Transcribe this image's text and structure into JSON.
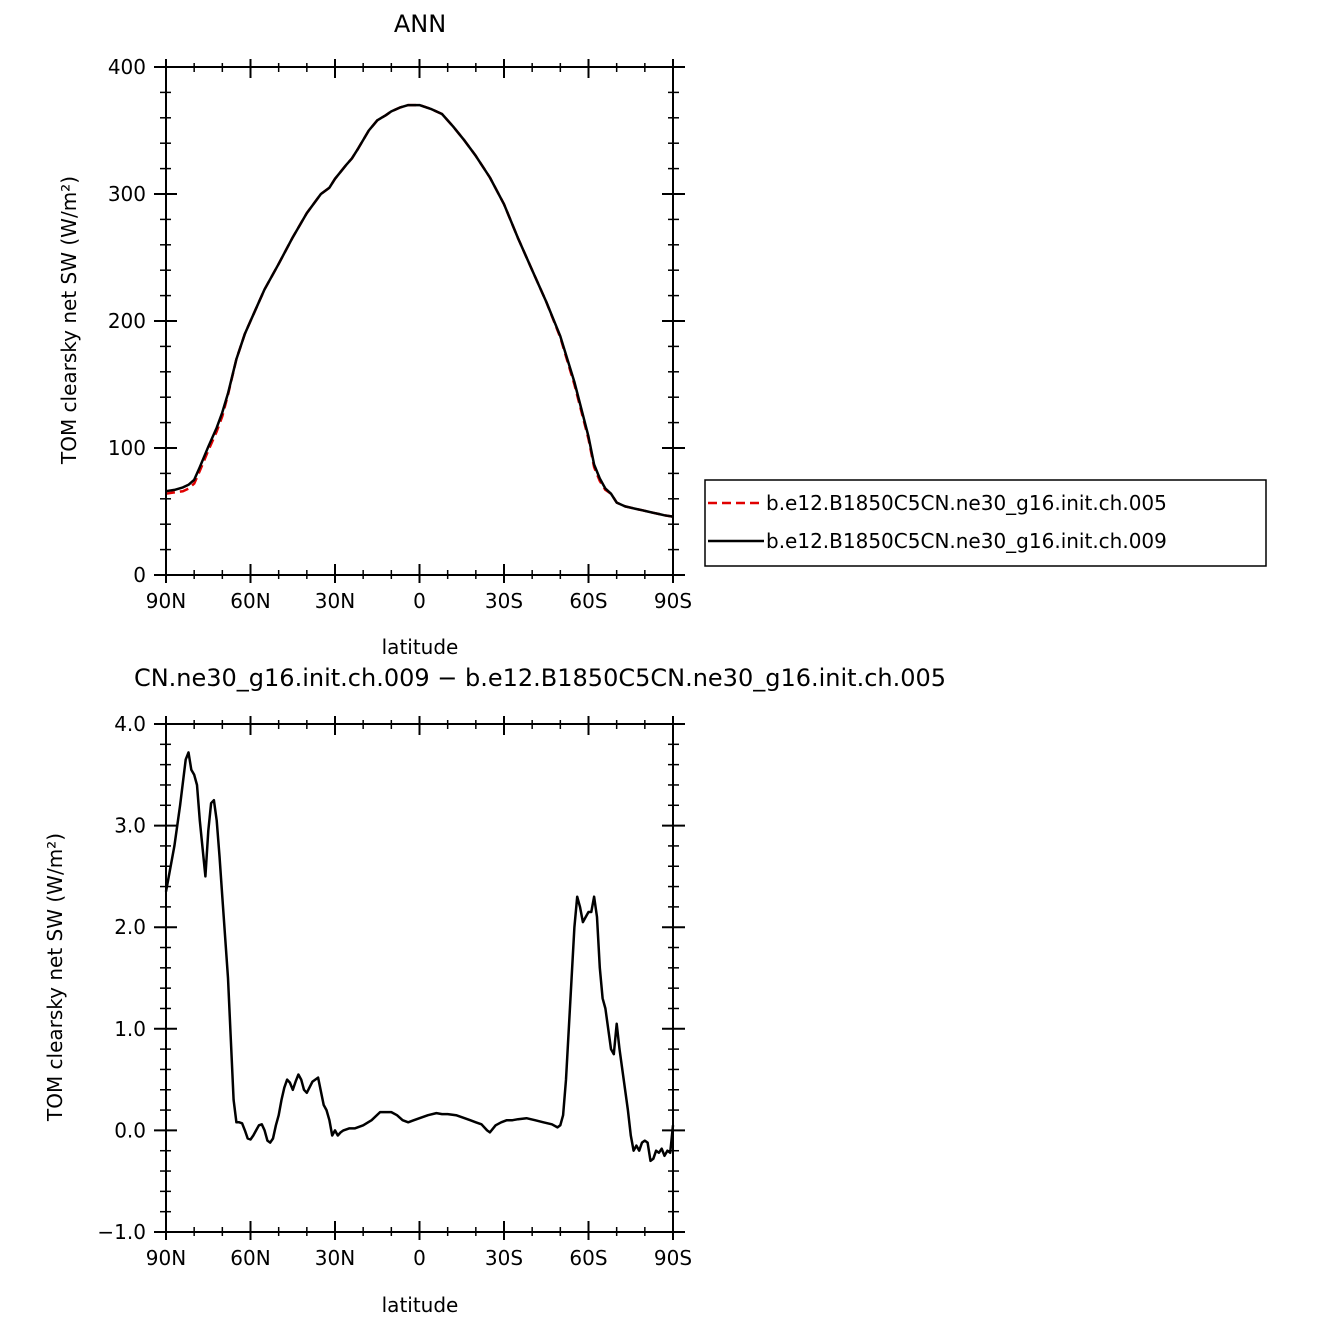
{
  "chart_data": [
    {
      "type": "line",
      "title": "ANN",
      "xlabel": "latitude",
      "ylabel": "TOM clearsky net SW (W/m²)",
      "xlim": [
        90,
        -90
      ],
      "ylim": [
        0,
        400
      ],
      "xticks": [
        90,
        60,
        30,
        0,
        -30,
        -60,
        -90
      ],
      "xtick_labels": [
        "90N",
        "60N",
        "30N",
        "0",
        "30S",
        "60S",
        "90S"
      ],
      "yticks": [
        0,
        100,
        200,
        300,
        400
      ],
      "ytick_labels": [
        "0",
        "100",
        "200",
        "300",
        "400"
      ],
      "grid": false,
      "legend_position": "right",
      "series": [
        {
          "name": "b.e12.B1850C5CN.ne30_g16.init.ch.005",
          "color": "#e00000",
          "dash": "dashed",
          "x": [
            90,
            87,
            84,
            82,
            80,
            78,
            75,
            72,
            70,
            68,
            65,
            62,
            60,
            55,
            50,
            45,
            40,
            35,
            32,
            30,
            26,
            24,
            22,
            18,
            15,
            12,
            10,
            7,
            4,
            2,
            0,
            -4,
            -8,
            -12,
            -16,
            -20,
            -25,
            -30,
            -35,
            -40,
            -45,
            -50,
            -55,
            -60,
            -62,
            -64,
            -66,
            -68,
            -70,
            -72,
            -73,
            -75,
            -77,
            -79,
            -81,
            -83,
            -85,
            -87,
            -90
          ],
          "values": [
            64,
            65,
            66,
            68,
            72,
            82,
            98,
            113,
            125,
            142,
            170,
            190,
            200,
            225,
            245,
            266,
            285,
            300,
            305,
            312,
            323,
            328,
            335,
            350,
            358,
            362,
            365,
            368,
            370,
            370,
            370,
            367,
            363,
            353,
            342,
            330,
            313,
            292,
            265,
            240,
            215,
            187,
            150,
            107,
            85,
            74,
            67,
            64,
            57,
            55,
            54,
            53,
            52,
            51,
            50,
            49,
            48,
            47,
            46
          ]
        },
        {
          "name": "b.e12.B1850C5CN.ne30_g16.init.ch.009",
          "color": "#000000",
          "dash": "solid",
          "x": [
            90,
            87,
            84,
            82,
            80,
            78,
            75,
            72,
            70,
            68,
            65,
            62,
            60,
            55,
            50,
            45,
            40,
            35,
            32,
            30,
            26,
            24,
            22,
            18,
            15,
            12,
            10,
            7,
            4,
            2,
            0,
            -4,
            -8,
            -12,
            -16,
            -20,
            -25,
            -30,
            -35,
            -40,
            -45,
            -50,
            -55,
            -60,
            -62,
            -64,
            -66,
            -68,
            -70,
            -72,
            -73,
            -75,
            -77,
            -79,
            -81,
            -83,
            -85,
            -87,
            -90
          ],
          "values": [
            66,
            67,
            69,
            71,
            75,
            85,
            101,
            116,
            128,
            143,
            170,
            190,
            200,
            225,
            245,
            266,
            285,
            300,
            305,
            312,
            323,
            328,
            335,
            350,
            358,
            362,
            365,
            368,
            370,
            370,
            370,
            367,
            363,
            353,
            342,
            330,
            313,
            292,
            265,
            240,
            215,
            188,
            152,
            109,
            87,
            76,
            68,
            64,
            57,
            55,
            54,
            53,
            52,
            51,
            50,
            49,
            48,
            47,
            46
          ]
        }
      ]
    },
    {
      "type": "line",
      "title": "CN.ne30_g16.init.ch.009 − b.e12.B1850C5CN.ne30_g16.init.ch.005",
      "xlabel": "latitude",
      "ylabel": "TOM clearsky net SW (W/m²)",
      "xlim": [
        90,
        -90
      ],
      "ylim": [
        -1.0,
        4.0
      ],
      "xticks": [
        90,
        60,
        30,
        0,
        -30,
        -60,
        -90
      ],
      "xtick_labels": [
        "90N",
        "60N",
        "30N",
        "0",
        "30S",
        "60S",
        "90S"
      ],
      "yticks": [
        -1.0,
        0.0,
        1.0,
        2.0,
        3.0,
        4.0
      ],
      "ytick_labels": [
        "−1.0",
        "0.0",
        "1.0",
        "2.0",
        "3.0",
        "4.0"
      ],
      "grid": false,
      "series": [
        {
          "color": "#000000",
          "dash": "solid",
          "x": [
            90,
            87,
            85,
            83,
            82,
            81,
            80,
            79,
            78,
            76,
            75,
            74,
            73,
            72,
            71,
            70,
            68,
            67,
            66,
            65,
            64,
            63,
            62,
            61,
            60,
            59,
            58,
            57,
            56,
            55,
            54,
            53,
            52,
            51,
            50,
            49,
            48,
            47,
            46,
            45,
            44,
            43,
            42,
            41,
            40,
            38,
            36,
            34,
            33,
            32,
            31,
            30,
            29,
            28,
            27,
            25,
            23,
            20,
            17,
            14,
            12,
            10,
            8,
            6,
            4,
            2,
            0,
            -3,
            -6,
            -8,
            -10,
            -13,
            -16,
            -18,
            -20,
            -22,
            -24,
            -25,
            -27,
            -29,
            -31,
            -33,
            -35,
            -38,
            -41,
            -44,
            -47,
            -49,
            -50,
            -51,
            -52,
            -53,
            -54,
            -55,
            -56,
            -57,
            -58,
            -59,
            -60,
            -61,
            -62,
            -63,
            -64,
            -65,
            -66,
            -67,
            -68,
            -69,
            -70,
            -71,
            -72,
            -74,
            -75,
            -76,
            -77,
            -78,
            -79,
            -80,
            -81,
            -82,
            -83,
            -84,
            -85,
            -86,
            -87,
            -88,
            -89,
            -90
          ],
          "values": [
            2.35,
            2.8,
            3.2,
            3.65,
            3.72,
            3.55,
            3.5,
            3.4,
            3.05,
            2.5,
            2.95,
            3.22,
            3.25,
            3.05,
            2.7,
            2.3,
            1.5,
            0.9,
            0.3,
            0.08,
            0.08,
            0.07,
            0.0,
            -0.08,
            -0.09,
            -0.05,
            0.0,
            0.05,
            0.06,
            0.0,
            -0.1,
            -0.12,
            -0.08,
            0.05,
            0.15,
            0.3,
            0.42,
            0.5,
            0.47,
            0.4,
            0.48,
            0.55,
            0.5,
            0.4,
            0.37,
            0.48,
            0.52,
            0.25,
            0.2,
            0.1,
            -0.05,
            0.0,
            -0.05,
            -0.02,
            0.0,
            0.02,
            0.02,
            0.05,
            0.1,
            0.18,
            0.18,
            0.18,
            0.15,
            0.1,
            0.08,
            0.1,
            0.12,
            0.15,
            0.17,
            0.16,
            0.16,
            0.15,
            0.12,
            0.1,
            0.08,
            0.06,
            0.0,
            -0.02,
            0.05,
            0.08,
            0.1,
            0.1,
            0.11,
            0.12,
            0.1,
            0.08,
            0.06,
            0.03,
            0.05,
            0.15,
            0.5,
            1.0,
            1.5,
            2.0,
            2.3,
            2.2,
            2.05,
            2.1,
            2.15,
            2.15,
            2.3,
            2.1,
            1.6,
            1.3,
            1.2,
            1.0,
            0.8,
            0.75,
            1.05,
            0.8,
            0.6,
            0.2,
            -0.05,
            -0.2,
            -0.15,
            -0.2,
            -0.12,
            -0.1,
            -0.12,
            -0.3,
            -0.28,
            -0.2,
            -0.22,
            -0.18,
            -0.25,
            -0.2,
            -0.22,
            0.05
          ]
        }
      ]
    }
  ]
}
